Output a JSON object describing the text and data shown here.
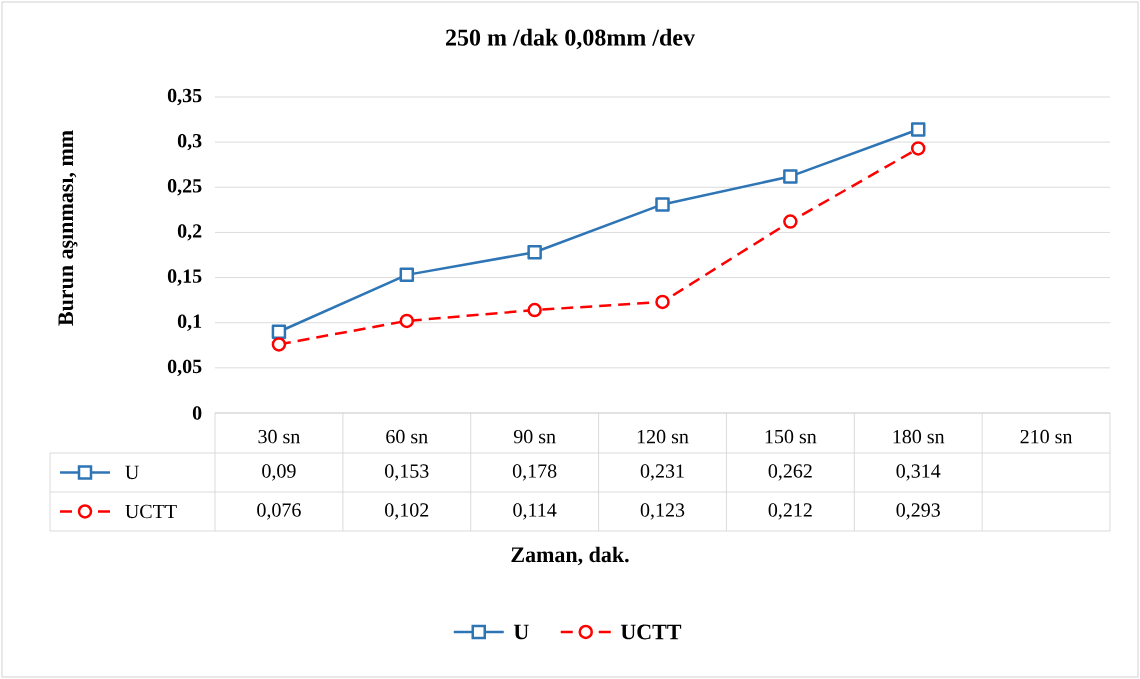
{
  "chart_data": {
    "type": "line",
    "title": "250 m /dak 0,08mm /dev",
    "xlabel": "Zaman, dak.",
    "ylabel": "Burun aşınması, mm",
    "categories": [
      "30 sn",
      "60 sn",
      "90 sn",
      "120 sn",
      "150 sn",
      "180 sn",
      "210 sn"
    ],
    "series": [
      {
        "name": "U",
        "color": "#2e75b6",
        "marker": "square",
        "line_style": "solid",
        "values": [
          0.09,
          0.153,
          0.178,
          0.231,
          0.262,
          0.314,
          null
        ],
        "value_labels": [
          "0,09",
          "0,153",
          "0,178",
          "0,231",
          "0,262",
          "0,314",
          null
        ]
      },
      {
        "name": "UCTT",
        "color": "#ff0000",
        "marker": "circle",
        "line_style": "dashed",
        "values": [
          0.076,
          0.102,
          0.114,
          0.123,
          0.212,
          0.293,
          null
        ],
        "value_labels": [
          "0,076",
          "0,102",
          "0,114",
          "0,123",
          "0,212",
          "0,293",
          null
        ]
      }
    ],
    "ylim": [
      0,
      0.35
    ],
    "yticks": [
      0,
      {
        "value": 0.05,
        "label": "0,05"
      },
      {
        "value": 0.1,
        "label": "0,1"
      },
      {
        "value": 0.15,
        "label": "0,15"
      },
      {
        "value": 0.2,
        "label": "0,2"
      },
      {
        "value": 0.25,
        "label": "0,25"
      },
      {
        "value": 0.3,
        "label": "0,3"
      },
      {
        "value": 0.35,
        "label": "0,35"
      }
    ],
    "grid": "y",
    "legend": "bottom"
  }
}
